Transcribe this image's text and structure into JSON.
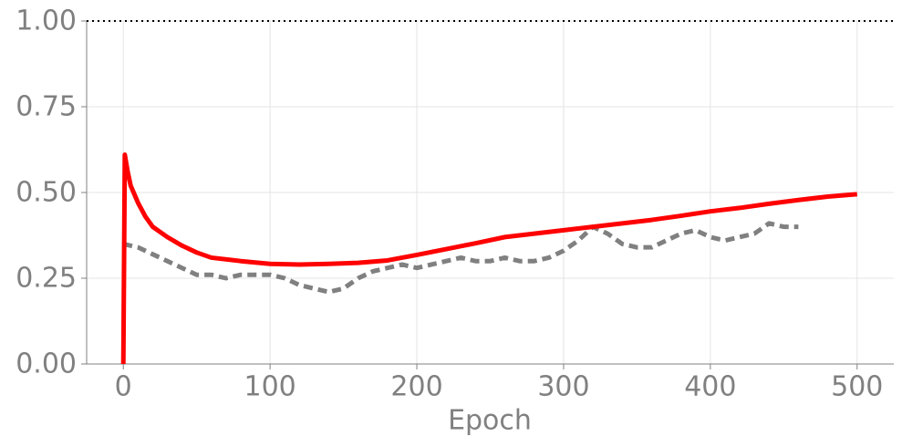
{
  "chart_data": {
    "type": "line",
    "xlabel": "Epoch",
    "xlim": [
      -25,
      525
    ],
    "ylim": [
      0,
      1
    ],
    "xticks": [
      0,
      100,
      200,
      300,
      400,
      500
    ],
    "yticks": [
      {
        "value": 0,
        "label": "0.00"
      },
      {
        "value": 0.25,
        "label": "0.25"
      },
      {
        "value": 0.5,
        "label": "0.50"
      },
      {
        "value": 0.75,
        "label": "0.75"
      },
      {
        "value": 1,
        "label": "1.00"
      }
    ],
    "grid": true,
    "hline": 1,
    "series": [
      {
        "color": "#ff0000",
        "style": "solid",
        "x": [
          0,
          1,
          3,
          5,
          10,
          15,
          20,
          30,
          40,
          50,
          60,
          80,
          100,
          120,
          140,
          160,
          180,
          200,
          220,
          240,
          260,
          280,
          300,
          320,
          340,
          360,
          380,
          400,
          420,
          440,
          460,
          480,
          500
        ],
        "values": [
          0,
          0.61,
          0.56,
          0.52,
          0.47,
          0.43,
          0.4,
          0.37,
          0.345,
          0.325,
          0.31,
          0.3,
          0.292,
          0.29,
          0.292,
          0.295,
          0.302,
          0.318,
          0.335,
          0.352,
          0.37,
          0.38,
          0.39,
          0.4,
          0.41,
          0.42,
          0.432,
          0.445,
          0.455,
          0.467,
          0.478,
          0.488,
          0.495
        ]
      },
      {
        "color": "#808080",
        "style": "dashed",
        "x": [
          0,
          10,
          20,
          30,
          40,
          50,
          60,
          70,
          80,
          90,
          100,
          110,
          120,
          130,
          140,
          150,
          160,
          170,
          180,
          190,
          200,
          210,
          220,
          230,
          240,
          250,
          260,
          270,
          280,
          290,
          300,
          310,
          320,
          330,
          340,
          350,
          360,
          370,
          380,
          390,
          400,
          410,
          420,
          430,
          440,
          450,
          460
        ],
        "values": [
          0.35,
          0.34,
          0.32,
          0.3,
          0.28,
          0.26,
          0.26,
          0.25,
          0.26,
          0.26,
          0.26,
          0.25,
          0.23,
          0.22,
          0.21,
          0.22,
          0.25,
          0.27,
          0.28,
          0.29,
          0.28,
          0.29,
          0.3,
          0.31,
          0.3,
          0.3,
          0.31,
          0.3,
          0.3,
          0.31,
          0.33,
          0.36,
          0.4,
          0.38,
          0.35,
          0.34,
          0.34,
          0.36,
          0.38,
          0.39,
          0.37,
          0.36,
          0.37,
          0.38,
          0.41,
          0.4,
          0.4
        ]
      }
    ]
  }
}
